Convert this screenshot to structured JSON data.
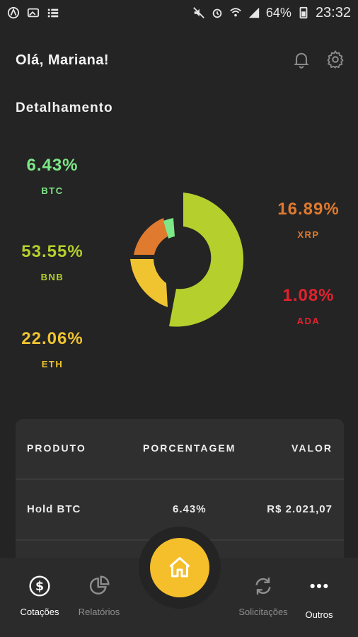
{
  "status": {
    "battery": "64%",
    "time": "23:32"
  },
  "header": {
    "greeting": "Olá, Mariana!",
    "section_title": "Detalhamento"
  },
  "colors": {
    "btc": "#7ee787",
    "bnb": "#b5cf2d",
    "eth": "#f0c431",
    "xrp": "#e07a2e",
    "ada": "#e3222e",
    "home": "#f4bf2a"
  },
  "breakdown": {
    "btc": {
      "pct": "6.43%",
      "sym": "BTC"
    },
    "bnb": {
      "pct": "53.55%",
      "sym": "BNB"
    },
    "eth": {
      "pct": "22.06%",
      "sym": "ETH"
    },
    "xrp": {
      "pct": "16.89%",
      "sym": "XRP"
    },
    "ada": {
      "pct": "1.08%",
      "sym": "ADA"
    }
  },
  "table": {
    "headers": {
      "product": "PRODUTO",
      "percentage": "PORCENTAGEM",
      "value": "VALOR"
    },
    "rows": [
      {
        "product": "Hold BTC",
        "percentage": "6.43%",
        "value": "R$ 2.021,07"
      }
    ]
  },
  "nav": {
    "cotacoes": "Cotações",
    "relatorios": "Relatórios",
    "solicitacoes": "Solicitações",
    "outros": "Outros"
  }
}
